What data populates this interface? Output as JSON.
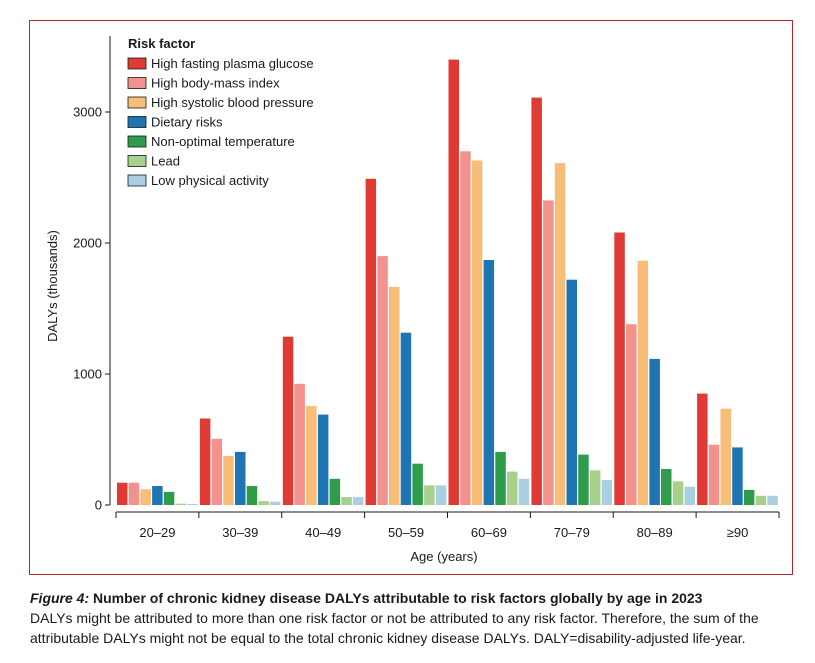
{
  "caption": {
    "figure_label": "Figure 4:",
    "title": " Number of chronic kidney disease DALYs attributable to risk factors globally by age in 2023",
    "body": "DALYs might be attributed to more than one risk factor or not be attributed to any risk factor. Therefore, the sum of the attributable DALYs might not be equal to the total chronic kidney disease DALYs. DALY=disability-adjusted life-year."
  },
  "colors": {
    "frame": "#b9242d",
    "series": [
      "#e03a35",
      "#f3918d",
      "#f8bd76",
      "#1f74b3",
      "#2e9c4b",
      "#a8d08d",
      "#a9cfe0"
    ]
  },
  "chart_data": {
    "type": "bar",
    "title": "",
    "xlabel": "Age (years)",
    "ylabel": "DALYs (thousands)",
    "ylim": [
      0,
      3500
    ],
    "yticks": [
      0,
      1000,
      2000,
      3000
    ],
    "ytick_labels": [
      "0",
      "1000",
      "2000",
      "3000"
    ],
    "grid": false,
    "legend": {
      "title": "Risk factor",
      "position": "top-left"
    },
    "categories": [
      "20–29",
      "30–39",
      "40–49",
      "50–59",
      "60–69",
      "70–79",
      "80–89",
      "≥90"
    ],
    "series": [
      {
        "name": "High fasting plasma glucose",
        "values": [
          170,
          660,
          1285,
          2490,
          3400,
          3110,
          2080,
          850
        ]
      },
      {
        "name": "High body-mass index",
        "values": [
          170,
          505,
          925,
          1900,
          2700,
          2325,
          1380,
          460
        ]
      },
      {
        "name": "High systolic blood pressure",
        "values": [
          120,
          375,
          755,
          1665,
          2630,
          2610,
          1865,
          735
        ]
      },
      {
        "name": "Dietary risks",
        "values": [
          145,
          405,
          690,
          1315,
          1870,
          1720,
          1115,
          440
        ]
      },
      {
        "name": "Non-optimal temperature",
        "values": [
          100,
          145,
          200,
          315,
          405,
          385,
          275,
          115
        ]
      },
      {
        "name": "Lead",
        "values": [
          10,
          30,
          60,
          150,
          255,
          265,
          180,
          70
        ]
      },
      {
        "name": "Low physical activity",
        "values": [
          8,
          25,
          60,
          150,
          200,
          190,
          140,
          70
        ]
      }
    ]
  }
}
